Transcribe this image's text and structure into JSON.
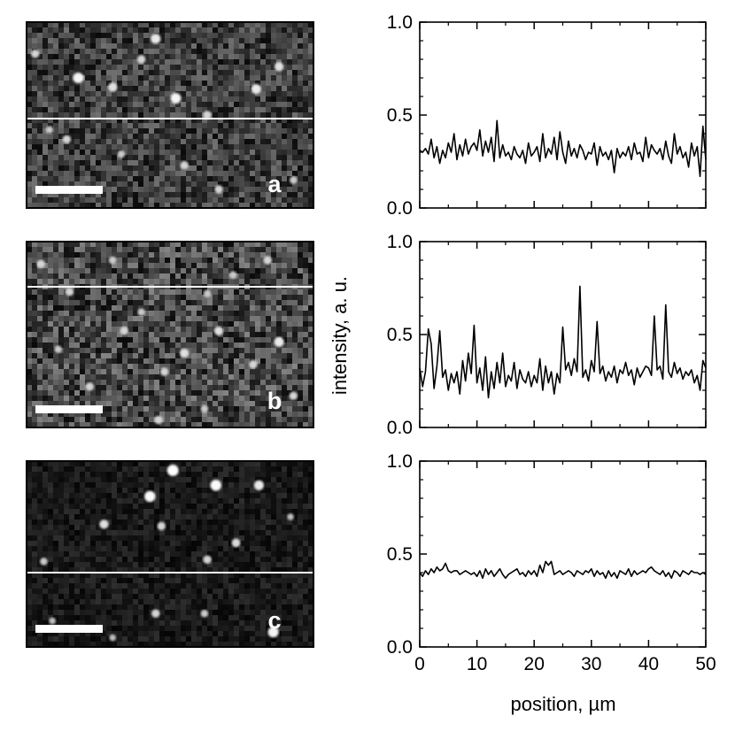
{
  "figure": {
    "shared_ylabel": "intensity, a. u.",
    "shared_xlabel": "position, µm"
  },
  "panels": [
    {
      "label": "a"
    },
    {
      "label": "b"
    },
    {
      "label": "c"
    }
  ],
  "chart_data": [
    {
      "type": "line",
      "panel": "a",
      "xlim": [
        0,
        50
      ],
      "ylim": [
        0.0,
        1.0
      ],
      "x_ticks": [
        "0",
        "10",
        "20",
        "30",
        "40",
        "50"
      ],
      "y_ticks": [
        "0.0",
        "0.5",
        "1.0"
      ],
      "xlabel": "",
      "ylabel": "",
      "line_color": "#000000",
      "x": [
        0,
        0.5,
        1,
        1.5,
        2,
        2.5,
        3,
        3.5,
        4,
        4.5,
        5,
        5.5,
        6,
        6.5,
        7,
        7.5,
        8,
        8.5,
        9,
        9.5,
        10,
        10.5,
        11,
        11.5,
        12,
        12.5,
        13,
        13.5,
        14,
        14.5,
        15,
        15.5,
        16,
        16.5,
        17,
        17.5,
        18,
        18.5,
        19,
        19.5,
        20,
        20.5,
        21,
        21.5,
        22,
        22.5,
        23,
        23.5,
        24,
        24.5,
        25,
        25.5,
        26,
        26.5,
        27,
        27.5,
        28,
        28.5,
        29,
        29.5,
        30,
        30.5,
        31,
        31.5,
        32,
        32.5,
        33,
        33.5,
        34,
        34.5,
        35,
        35.5,
        36,
        36.5,
        37,
        37.5,
        38,
        38.5,
        39,
        39.5,
        40,
        40.5,
        41,
        41.5,
        42,
        42.5,
        43,
        43.5,
        44,
        44.5,
        45,
        45.5,
        46,
        46.5,
        47,
        47.5,
        48,
        48.5,
        49,
        49.5,
        50
      ],
      "values": [
        0.31,
        0.3,
        0.32,
        0.29,
        0.37,
        0.27,
        0.33,
        0.24,
        0.31,
        0.27,
        0.35,
        0.3,
        0.4,
        0.26,
        0.34,
        0.28,
        0.37,
        0.29,
        0.33,
        0.35,
        0.31,
        0.42,
        0.28,
        0.36,
        0.3,
        0.38,
        0.25,
        0.47,
        0.27,
        0.34,
        0.28,
        0.3,
        0.26,
        0.33,
        0.29,
        0.27,
        0.31,
        0.24,
        0.35,
        0.28,
        0.3,
        0.33,
        0.25,
        0.4,
        0.27,
        0.32,
        0.29,
        0.38,
        0.26,
        0.41,
        0.3,
        0.24,
        0.36,
        0.28,
        0.32,
        0.27,
        0.34,
        0.31,
        0.26,
        0.3,
        0.29,
        0.35,
        0.23,
        0.33,
        0.28,
        0.3,
        0.26,
        0.31,
        0.19,
        0.32,
        0.27,
        0.3,
        0.28,
        0.33,
        0.26,
        0.35,
        0.29,
        0.3,
        0.25,
        0.38,
        0.27,
        0.34,
        0.31,
        0.29,
        0.32,
        0.26,
        0.36,
        0.28,
        0.24,
        0.4,
        0.29,
        0.33,
        0.27,
        0.3,
        0.22,
        0.35,
        0.28,
        0.33,
        0.17,
        0.44,
        0.26
      ]
    },
    {
      "type": "line",
      "panel": "b",
      "xlim": [
        0,
        50
      ],
      "ylim": [
        0.0,
        1.0
      ],
      "x_ticks": [
        "0",
        "10",
        "20",
        "30",
        "40",
        "50"
      ],
      "y_ticks": [
        "0.0",
        "0.5",
        "1.0"
      ],
      "xlabel": "",
      "ylabel": "",
      "line_color": "#000000",
      "x": [
        0,
        0.5,
        1,
        1.5,
        2,
        2.5,
        3,
        3.5,
        4,
        4.5,
        5,
        5.5,
        6,
        6.5,
        7,
        7.5,
        8,
        8.5,
        9,
        9.5,
        10,
        10.5,
        11,
        11.5,
        12,
        12.5,
        13,
        13.5,
        14,
        14.5,
        15,
        15.5,
        16,
        16.5,
        17,
        17.5,
        18,
        18.5,
        19,
        19.5,
        20,
        20.5,
        21,
        21.5,
        22,
        22.5,
        23,
        23.5,
        24,
        24.5,
        25,
        25.5,
        26,
        26.5,
        27,
        27.5,
        28,
        28.5,
        29,
        29.5,
        30,
        30.5,
        31,
        31.5,
        32,
        32.5,
        33,
        33.5,
        34,
        34.5,
        35,
        35.5,
        36,
        36.5,
        37,
        37.5,
        38,
        38.5,
        39,
        39.5,
        40,
        40.5,
        41,
        41.5,
        42,
        42.5,
        43,
        43.5,
        44,
        44.5,
        45,
        45.5,
        46,
        46.5,
        47,
        47.5,
        48,
        48.5,
        49,
        49.5,
        50
      ],
      "values": [
        0.32,
        0.22,
        0.3,
        0.53,
        0.45,
        0.21,
        0.33,
        0.52,
        0.27,
        0.31,
        0.2,
        0.29,
        0.24,
        0.3,
        0.18,
        0.36,
        0.25,
        0.4,
        0.29,
        0.55,
        0.24,
        0.32,
        0.2,
        0.38,
        0.16,
        0.3,
        0.21,
        0.35,
        0.24,
        0.4,
        0.22,
        0.28,
        0.25,
        0.35,
        0.21,
        0.31,
        0.26,
        0.24,
        0.3,
        0.22,
        0.28,
        0.24,
        0.37,
        0.2,
        0.33,
        0.24,
        0.3,
        0.18,
        0.29,
        0.24,
        0.54,
        0.31,
        0.35,
        0.28,
        0.37,
        0.3,
        0.76,
        0.27,
        0.31,
        0.25,
        0.36,
        0.3,
        0.57,
        0.29,
        0.33,
        0.25,
        0.3,
        0.27,
        0.33,
        0.24,
        0.31,
        0.29,
        0.35,
        0.28,
        0.31,
        0.23,
        0.32,
        0.27,
        0.3,
        0.33,
        0.32,
        0.28,
        0.6,
        0.31,
        0.33,
        0.26,
        0.66,
        0.3,
        0.27,
        0.35,
        0.29,
        0.32,
        0.26,
        0.3,
        0.28,
        0.31,
        0.24,
        0.28,
        0.2,
        0.36,
        0.32
      ]
    },
    {
      "type": "line",
      "panel": "c",
      "xlim": [
        0,
        50
      ],
      "ylim": [
        0.0,
        1.0
      ],
      "x_ticks": [
        "0",
        "10",
        "20",
        "30",
        "40",
        "50"
      ],
      "y_ticks": [
        "0.0",
        "0.5",
        "1.0"
      ],
      "xlabel": "position, µm",
      "ylabel": "",
      "line_color": "#000000",
      "x": [
        0,
        0.5,
        1,
        1.5,
        2,
        2.5,
        3,
        3.5,
        4,
        4.5,
        5,
        5.5,
        6,
        6.5,
        7,
        7.5,
        8,
        8.5,
        9,
        9.5,
        10,
        10.5,
        11,
        11.5,
        12,
        12.5,
        13,
        13.5,
        14,
        14.5,
        15,
        15.5,
        16,
        16.5,
        17,
        17.5,
        18,
        18.5,
        19,
        19.5,
        20,
        20.5,
        21,
        21.5,
        22,
        22.5,
        23,
        23.5,
        24,
        24.5,
        25,
        25.5,
        26,
        26.5,
        27,
        27.5,
        28,
        28.5,
        29,
        29.5,
        30,
        30.5,
        31,
        31.5,
        32,
        32.5,
        33,
        33.5,
        34,
        34.5,
        35,
        35.5,
        36,
        36.5,
        37,
        37.5,
        38,
        38.5,
        39,
        39.5,
        40,
        40.5,
        41,
        41.5,
        42,
        42.5,
        43,
        43.5,
        44,
        44.5,
        45,
        45.5,
        46,
        46.5,
        47,
        47.5,
        48,
        48.5,
        49,
        49.5,
        50
      ],
      "values": [
        0.4,
        0.38,
        0.41,
        0.39,
        0.42,
        0.4,
        0.43,
        0.41,
        0.42,
        0.45,
        0.41,
        0.4,
        0.41,
        0.41,
        0.39,
        0.4,
        0.41,
        0.4,
        0.39,
        0.4,
        0.38,
        0.41,
        0.37,
        0.42,
        0.39,
        0.41,
        0.38,
        0.4,
        0.42,
        0.39,
        0.37,
        0.39,
        0.4,
        0.41,
        0.42,
        0.39,
        0.4,
        0.38,
        0.41,
        0.39,
        0.41,
        0.38,
        0.44,
        0.4,
        0.46,
        0.44,
        0.46,
        0.39,
        0.4,
        0.41,
        0.39,
        0.4,
        0.41,
        0.4,
        0.38,
        0.41,
        0.4,
        0.39,
        0.41,
        0.4,
        0.42,
        0.38,
        0.41,
        0.39,
        0.4,
        0.37,
        0.41,
        0.38,
        0.4,
        0.37,
        0.41,
        0.4,
        0.39,
        0.42,
        0.38,
        0.41,
        0.39,
        0.4,
        0.41,
        0.4,
        0.42,
        0.43,
        0.41,
        0.4,
        0.39,
        0.41,
        0.38,
        0.4,
        0.37,
        0.41,
        0.4,
        0.38,
        0.41,
        0.4,
        0.39,
        0.41,
        0.4,
        0.4,
        0.39,
        0.4,
        0.39
      ]
    }
  ],
  "micrographs": [
    {
      "panel": "a",
      "background": "#3a3a3a",
      "noise_seed": 11,
      "noise_mean": 0.24,
      "noise_spread": 0.2,
      "spots": [
        [
          0.03,
          0.17,
          0.6
        ],
        [
          0.18,
          0.3,
          0.9
        ],
        [
          0.3,
          0.35,
          0.7
        ],
        [
          0.45,
          0.09,
          0.8
        ],
        [
          0.52,
          0.41,
          0.9
        ],
        [
          0.63,
          0.5,
          0.6
        ],
        [
          0.8,
          0.36,
          0.8
        ],
        [
          0.88,
          0.24,
          0.7
        ],
        [
          0.14,
          0.63,
          0.6
        ],
        [
          0.33,
          0.71,
          0.5
        ],
        [
          0.55,
          0.77,
          0.6
        ],
        [
          0.67,
          0.9,
          0.6
        ],
        [
          0.93,
          0.85,
          0.5
        ],
        [
          0.08,
          0.58,
          0.5
        ],
        [
          0.4,
          0.2,
          0.6
        ]
      ]
    },
    {
      "panel": "b",
      "background": "#3f3f3f",
      "noise_seed": 29,
      "noise_mean": 0.28,
      "noise_spread": 0.24,
      "spots": [
        [
          0.05,
          0.12,
          0.6
        ],
        [
          0.15,
          0.27,
          0.6
        ],
        [
          0.34,
          0.48,
          0.6
        ],
        [
          0.48,
          0.7,
          0.6
        ],
        [
          0.55,
          0.6,
          0.7
        ],
        [
          0.67,
          0.48,
          0.7
        ],
        [
          0.79,
          0.66,
          0.6
        ],
        [
          0.88,
          0.54,
          0.8
        ],
        [
          0.22,
          0.78,
          0.6
        ],
        [
          0.46,
          0.96,
          0.6
        ],
        [
          0.62,
          0.9,
          0.5
        ],
        [
          0.93,
          0.83,
          0.6
        ],
        [
          0.11,
          0.58,
          0.5
        ],
        [
          0.72,
          0.18,
          0.5
        ],
        [
          0.3,
          0.1,
          0.5
        ],
        [
          0.84,
          0.1,
          0.6
        ],
        [
          0.4,
          0.38,
          0.5
        ],
        [
          0.63,
          0.28,
          0.5
        ]
      ]
    },
    {
      "panel": "c",
      "background": "#151515",
      "noise_seed": 47,
      "noise_mean": 0.1,
      "noise_spread": 0.08,
      "spots": [
        [
          0.51,
          0.05,
          1.0
        ],
        [
          0.43,
          0.19,
          0.95
        ],
        [
          0.66,
          0.13,
          0.95
        ],
        [
          0.81,
          0.13,
          0.8
        ],
        [
          0.27,
          0.34,
          0.7
        ],
        [
          0.47,
          0.35,
          0.6
        ],
        [
          0.73,
          0.44,
          0.65
        ],
        [
          0.63,
          0.53,
          0.6
        ],
        [
          0.06,
          0.54,
          0.5
        ],
        [
          0.45,
          0.82,
          0.6
        ],
        [
          0.86,
          0.92,
          0.9
        ],
        [
          0.62,
          0.82,
          0.5
        ],
        [
          0.92,
          0.3,
          0.4
        ],
        [
          0.3,
          0.95,
          0.4
        ],
        [
          0.09,
          0.86,
          0.4
        ]
      ]
    }
  ]
}
